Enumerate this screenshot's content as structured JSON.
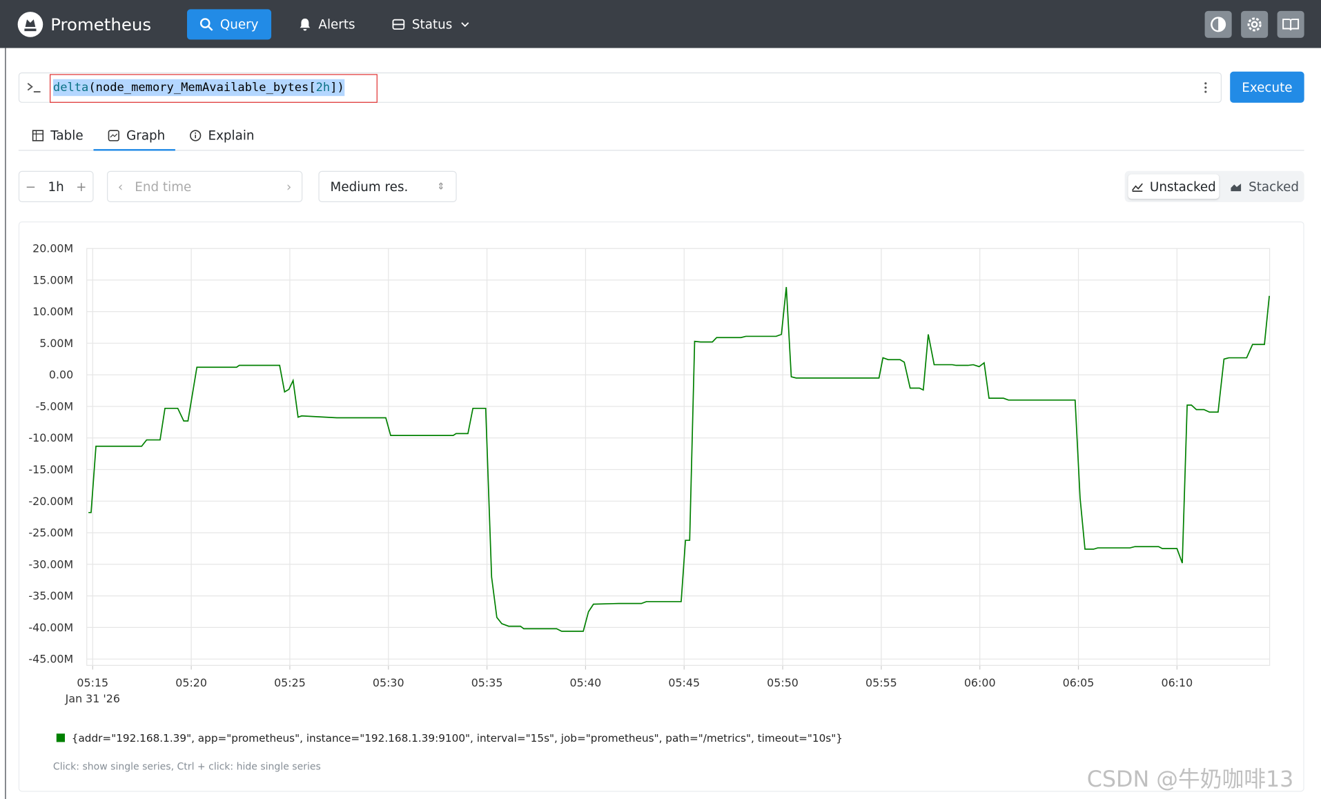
{
  "nav": {
    "brand": "Prometheus",
    "items": [
      "Query",
      "Alerts",
      "Status"
    ]
  },
  "query": {
    "parts": [
      "delta",
      "(node_memory_MemAvailable_bytes[",
      "2h",
      "])"
    ],
    "execute": "Execute"
  },
  "tabs": [
    "Table",
    "Graph",
    "Explain"
  ],
  "controls": {
    "range": "1h",
    "end_time": "End time",
    "resolution": "Medium res.",
    "modes": [
      "Unstacked",
      "Stacked"
    ]
  },
  "chart_data": {
    "type": "line",
    "x_sublabel": "Jan 31 '26",
    "x": [
      "05:14:47",
      "05:14:55",
      "05:15:10",
      "05:17:29",
      "05:17:44",
      "05:18:25",
      "05:18:40",
      "05:19:19",
      "05:19:37",
      "05:19:50",
      "05:20:17",
      "05:22:18",
      "05:22:26",
      "05:24:29",
      "05:24:44",
      "05:24:57",
      "05:25:10",
      "05:25:25",
      "05:25:36",
      "05:27:23",
      "05:29:52",
      "05:30:07",
      "05:33:17",
      "05:33:26",
      "05:34:02",
      "05:34:17",
      "05:34:56",
      "05:35:14",
      "05:35:30",
      "05:35:45",
      "05:36:06",
      "05:36:42",
      "05:36:52",
      "05:38:32",
      "05:38:47",
      "05:39:53",
      "05:40:09",
      "05:40:24",
      "05:41:41",
      "05:42:50",
      "05:43:05",
      "05:44:51",
      "05:45:04",
      "05:45:17",
      "05:45:32",
      "05:45:50",
      "05:46:26",
      "05:46:39",
      "05:47:53",
      "05:48:08",
      "05:49:40",
      "05:49:56",
      "05:50:11",
      "05:50:26",
      "05:50:41",
      "05:54:53",
      "05:55:05",
      "05:55:21",
      "05:55:57",
      "05:56:10",
      "05:56:28",
      "05:56:56",
      "05:57:08",
      "05:57:23",
      "05:57:41",
      "05:58:36",
      "05:58:48",
      "05:59:24",
      "05:59:40",
      "05:59:58",
      "06:00:13",
      "06:00:28",
      "06:01:12",
      "06:01:27",
      "06:04:50",
      "06:05:05",
      "06:05:20",
      "06:05:46",
      "06:05:59",
      "06:07:37",
      "06:07:52",
      "06:09:04",
      "06:09:15",
      "06:10:00",
      "06:10:16",
      "06:10:31",
      "06:10:44",
      "06:10:59",
      "06:11:22",
      "06:11:39",
      "06:12:05",
      "06:12:23",
      "06:12:38",
      "06:13:32",
      "06:13:50",
      "06:14:26",
      "06:14:41"
    ],
    "series": [
      {
        "name": "{addr=\"192.168.1.39\", app=\"prometheus\", instance=\"192.168.1.39:9100\", interval=\"15s\", job=\"prometheus\", path=\"/metrics\", timeout=\"10s\"}",
        "color": "#008000",
        "values": [
          -21800000,
          -21800000,
          -11300000,
          -11300000,
          -10300000,
          -10300000,
          -5300000,
          -5300000,
          -7300000,
          -7300000,
          1200000,
          1200000,
          1500000,
          1500000,
          -2700000,
          -2300000,
          -900000,
          -6700000,
          -6500000,
          -6800000,
          -6800000,
          -9600000,
          -9600000,
          -9300000,
          -9300000,
          -5300000,
          -5300000,
          -32000000,
          -38400000,
          -39400000,
          -39800000,
          -39800000,
          -40200000,
          -40200000,
          -40600000,
          -40600000,
          -37500000,
          -36300000,
          -36200000,
          -36200000,
          -35900000,
          -35900000,
          -26200000,
          -26200000,
          5300000,
          5200000,
          5200000,
          5900000,
          5900000,
          6100000,
          6100000,
          6400000,
          13900000,
          -300000,
          -500000,
          -500000,
          2700000,
          2400000,
          2400000,
          2000000,
          -2100000,
          -2100000,
          -2400000,
          6400000,
          1600000,
          1600000,
          1500000,
          1500000,
          1600000,
          1300000,
          1900000,
          -3700000,
          -3700000,
          -4000000,
          -4000000,
          -19500000,
          -27600000,
          -27600000,
          -27400000,
          -27400000,
          -27200000,
          -27200000,
          -27500000,
          -27500000,
          -29800000,
          -4800000,
          -4800000,
          -5500000,
          -5500000,
          -5900000,
          -5900000,
          2500000,
          2700000,
          2700000,
          4800000,
          4800000,
          12500000
        ]
      }
    ],
    "xlim": [
      "05:14:42",
      "06:14:42"
    ],
    "xticks": [
      "05:15",
      "05:20",
      "05:25",
      "05:30",
      "05:35",
      "05:40",
      "05:45",
      "05:50",
      "05:55",
      "06:00",
      "06:05",
      "06:10"
    ],
    "ylim": [
      -46000000,
      20000000
    ],
    "yticks": [
      {
        "value": 20000000,
        "label": "20.00M"
      },
      {
        "value": 15000000,
        "label": "15.00M"
      },
      {
        "value": 10000000,
        "label": "10.00M"
      },
      {
        "value": 5000000,
        "label": "5.00M"
      },
      {
        "value": 0,
        "label": "0.00"
      },
      {
        "value": -5000000,
        "label": "-5.00M"
      },
      {
        "value": -10000000,
        "label": "-10.00M"
      },
      {
        "value": -15000000,
        "label": "-15.00M"
      },
      {
        "value": -20000000,
        "label": "-20.00M"
      },
      {
        "value": -25000000,
        "label": "-25.00M"
      },
      {
        "value": -30000000,
        "label": "-30.00M"
      },
      {
        "value": -35000000,
        "label": "-35.00M"
      },
      {
        "value": -40000000,
        "label": "-40.00M"
      },
      {
        "value": -45000000,
        "label": "-45.00M"
      }
    ],
    "grid": true
  },
  "hint": "Click: show single series, Ctrl + click: hide single series",
  "watermark": "CSDN @牛奶咖啡13"
}
